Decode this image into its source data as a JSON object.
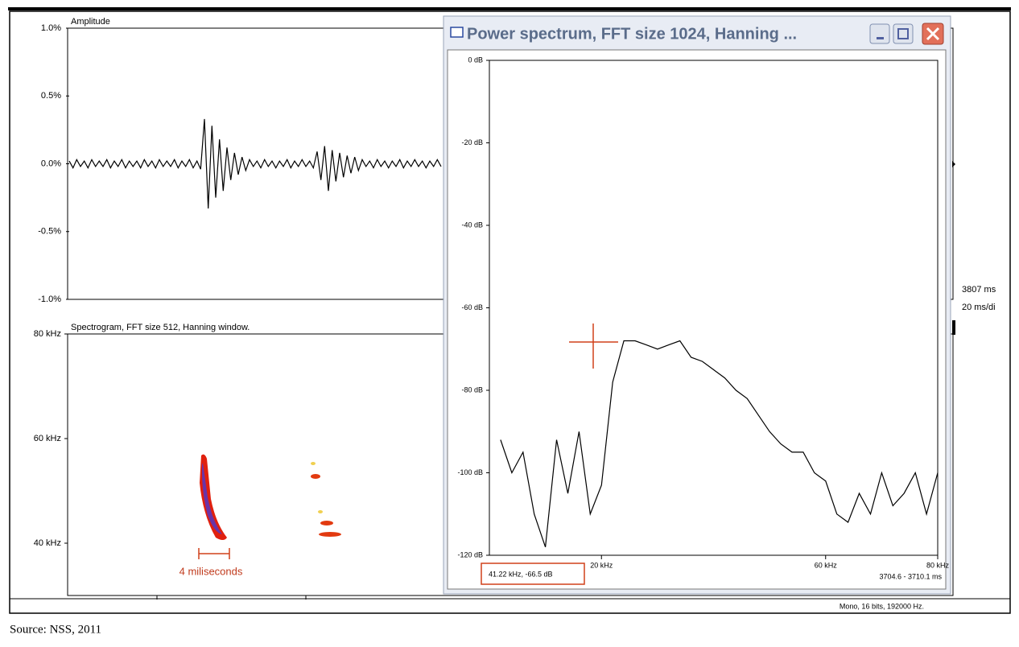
{
  "window_title": "Power spectrum, FFT size 1024, Hanning ...",
  "status_bar": "Mono, 16 bits, 192000 Hz.",
  "source": "Source: NSS, 2011",
  "side_labels": [
    "3807 ms",
    "20 ms/di"
  ],
  "scale_bar_label": "4 miliseconds",
  "cursor_readout": "41.22 kHz, -66.5 dB",
  "time_range": "3704.6 - 3710.1 ms",
  "chart_data": [
    {
      "type": "waveform",
      "title": "Amplitude",
      "color": "#000000",
      "ylim": [
        -1.0,
        1.0
      ],
      "yticks": [
        {
          "value": 1.0,
          "label": "1.0%"
        },
        {
          "value": 0.5,
          "label": "0.5%"
        },
        {
          "value": 0,
          "label": "0.0%"
        },
        {
          "value": -0.5,
          "label": "-0.5%"
        },
        {
          "value": -1.0,
          "label": "-1.0%"
        }
      ],
      "values": [
        0.02,
        -0.03,
        0.03,
        -0.02,
        0.02,
        -0.03,
        0.03,
        -0.02,
        0.02,
        -0.02,
        0.03,
        -0.03,
        0.02,
        -0.02,
        0.03,
        -0.03,
        0.02,
        -0.02,
        0.02,
        -0.03,
        0.03,
        -0.02,
        0.02,
        -0.03,
        0.03,
        -0.02,
        0.02,
        -0.02,
        0.03,
        -0.03,
        0.02,
        -0.02,
        0.03,
        -0.03,
        0.02,
        -0.04,
        0.33,
        -0.33,
        0.28,
        -0.25,
        0.18,
        -0.2,
        0.12,
        -0.12,
        0.08,
        -0.08,
        0.05,
        -0.05,
        0.03,
        -0.02,
        0.02,
        -0.03,
        0.03,
        -0.02,
        0.02,
        -0.03,
        0.02,
        -0.02,
        0.03,
        -0.03,
        0.02,
        -0.02,
        0.03,
        -0.02,
        0.02,
        -0.03,
        0.09,
        -0.12,
        0.13,
        -0.2,
        0.1,
        -0.13,
        0.08,
        -0.1,
        0.06,
        -0.07,
        0.05,
        -0.05,
        0.03,
        -0.02,
        0.02,
        -0.03,
        0.03,
        -0.02,
        0.02,
        -0.03,
        0.02,
        -0.02,
        0.03,
        -0.03,
        0.02,
        -0.02,
        0.03,
        -0.02,
        0.02,
        -0.03,
        0.02,
        -0.02,
        0.03,
        -0.02
      ]
    },
    {
      "type": "spectrogram",
      "title": "Spectrogram, FFT size 512, Hanning window.",
      "ylim": [
        30,
        80
      ],
      "yticks": [
        {
          "value": 80,
          "label": "80 kHz"
        },
        {
          "value": 60,
          "label": "60 kHz"
        },
        {
          "value": 40,
          "label": "40 kHz"
        }
      ]
    },
    {
      "type": "line",
      "color": "#000000",
      "xlim": [
        0,
        80
      ],
      "ylim": [
        -120,
        0
      ],
      "xticks": [
        {
          "value": 20,
          "label": "20 kHz"
        },
        {
          "value": 60,
          "label": "60 kHz"
        },
        {
          "value": 80,
          "label": "80 kHz"
        }
      ],
      "yticks": [
        {
          "value": 0,
          "label": "0 dB"
        },
        {
          "value": -20,
          "label": "-20 dB"
        },
        {
          "value": -40,
          "label": "-40 dB"
        },
        {
          "value": -60,
          "label": "-60 dB"
        },
        {
          "value": -80,
          "label": "-80 dB"
        },
        {
          "value": -100,
          "label": "-100 dB"
        },
        {
          "value": -120,
          "label": "-120 dB"
        }
      ],
      "x": [
        2,
        4,
        6,
        8,
        10,
        12,
        14,
        16,
        18,
        20,
        22,
        24,
        26,
        28,
        30,
        32,
        34,
        36,
        38,
        40,
        42,
        44,
        46,
        48,
        50,
        52,
        54,
        56,
        58,
        60,
        62,
        64,
        66,
        68,
        70,
        72,
        74,
        76,
        78,
        80
      ],
      "values": [
        -92,
        -100,
        -95,
        -110,
        -118,
        -92,
        -105,
        -90,
        -110,
        -103,
        -78,
        -68,
        -68,
        -69,
        -70,
        -69,
        -68,
        -72,
        -73,
        -75,
        -77,
        -80,
        -82,
        -86,
        -90,
        -93,
        -95,
        -95,
        -100,
        -102,
        -110,
        -112,
        -105,
        -110,
        -100,
        -108,
        -105,
        -100,
        -110,
        -100
      ]
    }
  ]
}
